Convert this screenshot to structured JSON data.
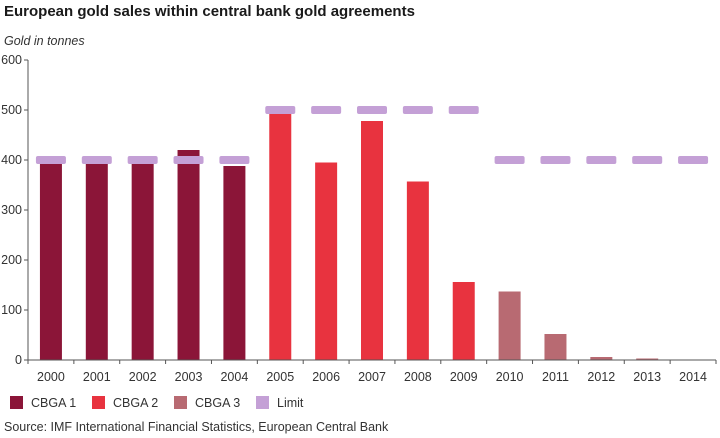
{
  "chart_data": {
    "type": "bar",
    "title": "European gold sales within central bank gold agreements",
    "ylabel": "Gold in tonnes",
    "xlabel": "",
    "source": "Source: IMF International Financial Statistics, European Central Bank",
    "ylim": [
      0,
      600
    ],
    "yticks": [
      0,
      100,
      200,
      300,
      400,
      500,
      600
    ],
    "grid": false,
    "legend_position": "bottom",
    "categories": [
      "2000",
      "2001",
      "2002",
      "2003",
      "2004",
      "2005",
      "2006",
      "2007",
      "2008",
      "2009",
      "2010",
      "2011",
      "2012",
      "2013",
      "2014"
    ],
    "series": [
      {
        "name": "CBGA 1",
        "color": "#8b1538",
        "values": [
          400,
          400,
          400,
          420,
          388,
          null,
          null,
          null,
          null,
          null,
          null,
          null,
          null,
          null,
          null
        ]
      },
      {
        "name": "CBGA 2",
        "color": "#e8333f",
        "values": [
          null,
          null,
          null,
          null,
          null,
          493,
          395,
          478,
          357,
          156,
          null,
          null,
          null,
          null,
          null
        ]
      },
      {
        "name": "CBGA 3",
        "color": "#b86a72",
        "values": [
          null,
          null,
          null,
          null,
          null,
          null,
          null,
          null,
          null,
          null,
          137,
          52,
          6,
          3,
          0
        ]
      },
      {
        "name": "Limit",
        "color": "#c4a0d6",
        "values": [
          400,
          400,
          400,
          400,
          400,
          500,
          500,
          500,
          500,
          500,
          400,
          400,
          400,
          400,
          400
        ]
      }
    ]
  }
}
